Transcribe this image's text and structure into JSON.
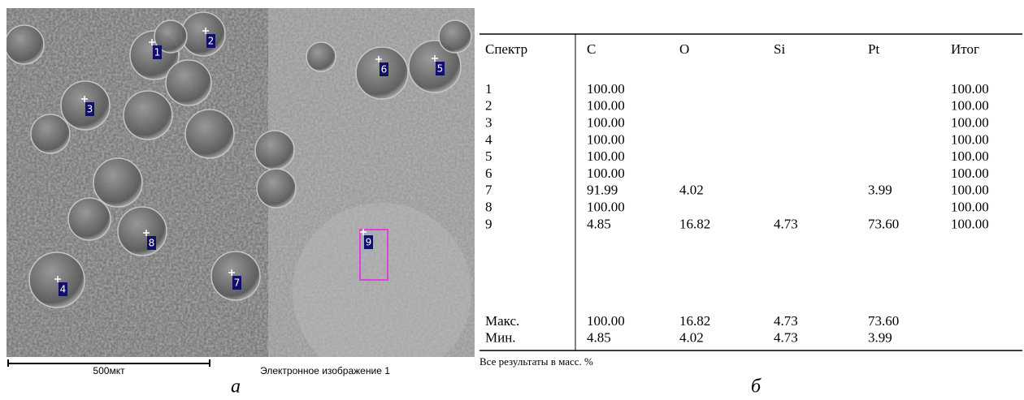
{
  "image": {
    "markers": [
      "1",
      "2",
      "3",
      "4",
      "5",
      "6",
      "7",
      "8",
      "9"
    ],
    "scale_bar": "500мкт",
    "caption": "Электронное изображение 1"
  },
  "table": {
    "columns": [
      "Спектр",
      "C",
      "O",
      "Si",
      "Pt",
      "Итог"
    ],
    "rows": [
      [
        "1",
        "100.00",
        null,
        null,
        null,
        "100.00"
      ],
      [
        "2",
        "100.00",
        null,
        null,
        null,
        "100.00"
      ],
      [
        "3",
        "100.00",
        null,
        null,
        null,
        "100.00"
      ],
      [
        "4",
        "100.00",
        null,
        null,
        null,
        "100.00"
      ],
      [
        "5",
        "100.00",
        null,
        null,
        null,
        "100.00"
      ],
      [
        "6",
        "100.00",
        null,
        null,
        null,
        "100.00"
      ],
      [
        "7",
        "91.99",
        "4.02",
        null,
        "3.99",
        "100.00"
      ],
      [
        "8",
        "100.00",
        null,
        null,
        null,
        "100.00"
      ],
      [
        "9",
        "4.85",
        "16.82",
        "4.73",
        "73.60",
        "100.00"
      ]
    ],
    "summary": [
      [
        "Макс.",
        "100.00",
        "16.82",
        "4.73",
        "73.60",
        null
      ],
      [
        "Мин.",
        "4.85",
        "4.02",
        "4.73",
        "3.99",
        null
      ]
    ],
    "footnote": "Все результаты в масс. %"
  },
  "labels": {
    "left": "а",
    "right": "б"
  }
}
